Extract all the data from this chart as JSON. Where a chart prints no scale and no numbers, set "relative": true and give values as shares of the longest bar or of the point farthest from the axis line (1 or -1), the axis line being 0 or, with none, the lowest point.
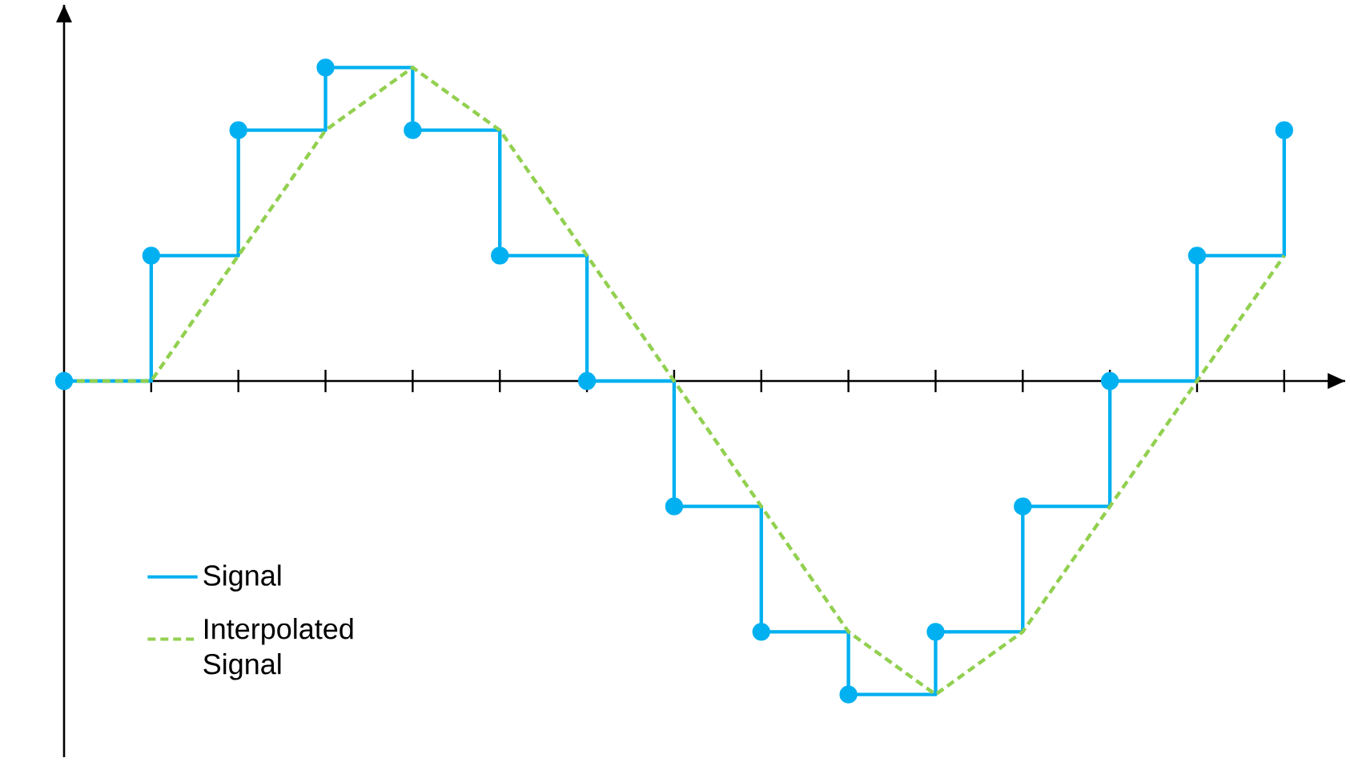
{
  "chart_data": {
    "type": "line",
    "relative": true,
    "categories": [
      null,
      null,
      null,
      null,
      null,
      null,
      null,
      null,
      null,
      null,
      null,
      null,
      null,
      null,
      null
    ],
    "legend": "bottom left",
    "grid": false,
    "series": [
      {
        "name": "Signal",
        "type": "step",
        "color": "#00b0f0",
        "marker": "circle",
        "line_style": "solid",
        "values": [
          0,
          0.4,
          0.8,
          1,
          0.8,
          0.4,
          0,
          -0.4,
          -0.8,
          -1,
          -0.8,
          -0.4,
          0,
          0.4,
          0.8
        ]
      },
      {
        "name": "Interpolated Signal",
        "color": "#92d050",
        "marker": "none",
        "line_style": "dashed",
        "values": [
          0,
          0,
          0.4,
          0.8,
          1,
          0.8,
          0.4,
          0,
          -0.4,
          -0.8,
          -1,
          -0.8,
          -0.4,
          0,
          0.4
        ]
      }
    ]
  }
}
